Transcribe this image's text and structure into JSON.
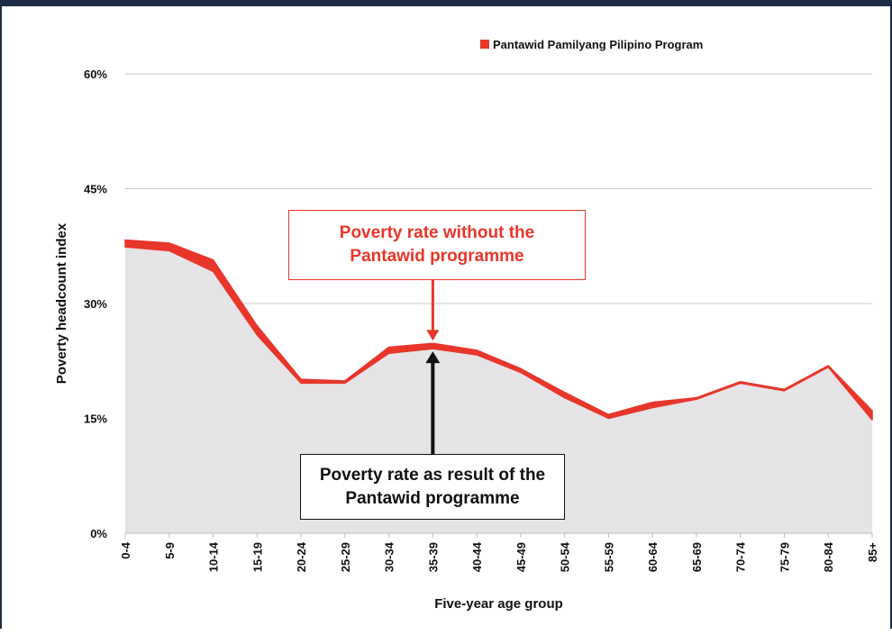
{
  "chart_data": {
    "type": "area",
    "title": "",
    "xlabel": "Five-year age group",
    "ylabel": "Poverty headcount index",
    "categories": [
      "0-4",
      "5-9",
      "10-14",
      "15-19",
      "20-24",
      "25-29",
      "30-34",
      "35-39",
      "40-44",
      "45-49",
      "50-54",
      "55-59",
      "60-64",
      "65-69",
      "70-74",
      "75-79",
      "80-84",
      "85+"
    ],
    "ylim": [
      0,
      60
    ],
    "y_ticks": [
      "0%",
      "15%",
      "30%",
      "45%",
      "60%"
    ],
    "y_tick_values": [
      0,
      15,
      30,
      45,
      60
    ],
    "grid": true,
    "legend_position": "top-right",
    "series": [
      {
        "name": "Pantawid Pamilyang Pilipino Program",
        "role": "poverty rate without the programme",
        "color": "#e8362a",
        "values": [
          38.3,
          37.9,
          35.7,
          27.1,
          20.1,
          19.9,
          24.3,
          24.8,
          23.9,
          21.5,
          18.4,
          15.5,
          17.1,
          17.7,
          19.8,
          18.8,
          21.9,
          16.0
        ]
      },
      {
        "role": "poverty rate as result of the programme",
        "color": "#e6e4e6",
        "values": [
          37.4,
          36.9,
          34.2,
          25.9,
          19.6,
          19.6,
          23.5,
          24.1,
          23.3,
          21.0,
          17.7,
          15.0,
          16.4,
          17.5,
          19.6,
          18.6,
          21.7,
          14.8
        ]
      }
    ],
    "annotations": {
      "without": {
        "line1": "Poverty rate without the",
        "line2": "Pantawid programme",
        "color": "#e8362a"
      },
      "with": {
        "line1": "Poverty rate as result of the",
        "line2": "Pantawid programme",
        "color": "#111111"
      }
    }
  }
}
